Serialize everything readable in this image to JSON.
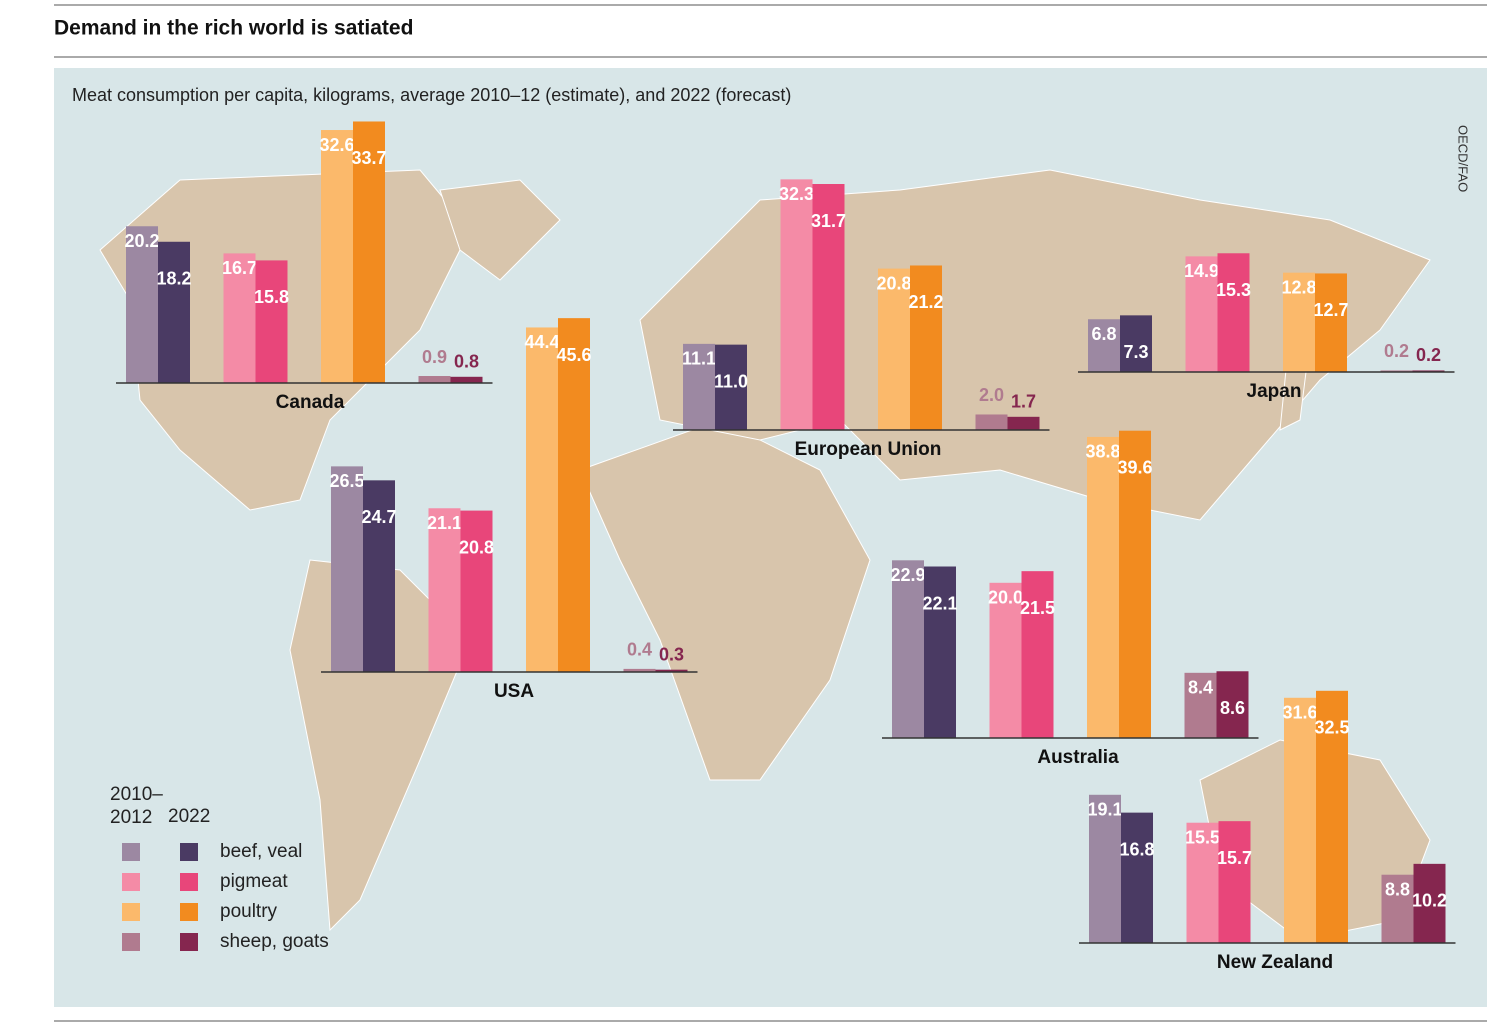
{
  "header": {
    "title": "Demand in the rich world is satiated"
  },
  "chart_data": {
    "type": "bar",
    "subtitle": "Meat consumption per capita, kilograms, average 2010–12 (estimate), and 2022 (forecast)",
    "source": "OECD/FAO",
    "periods": [
      "2010–2012",
      "2022"
    ],
    "categories": [
      "beef, veal",
      "pigmeat",
      "poultry",
      "sheep, goats"
    ],
    "colors": [
      [
        "#9c88a2",
        "#4a3a63"
      ],
      [
        "#f48ba6",
        "#e8467a"
      ],
      [
        "#fbb96b",
        "#f28b1f"
      ],
      [
        "#b07b8f",
        "#85264f"
      ]
    ],
    "regions": [
      {
        "name": "Canada",
        "values": [
          [
            20.2,
            18.2
          ],
          [
            16.7,
            15.8
          ],
          [
            32.6,
            33.7
          ],
          [
            0.9,
            0.8
          ]
        ],
        "value_labels": [
          [
            "20.2",
            "18.2"
          ],
          [
            "16.7",
            "15.8"
          ],
          [
            "32.6",
            "33.7"
          ],
          [
            "0.9",
            "0.8"
          ]
        ]
      },
      {
        "name": "USA",
        "values": [
          [
            26.5,
            24.7
          ],
          [
            21.1,
            20.8
          ],
          [
            44.4,
            45.6
          ],
          [
            0.4,
            0.3
          ]
        ],
        "value_labels": [
          [
            "26.5",
            "24.7"
          ],
          [
            "21.1",
            "20.8"
          ],
          [
            "44.4",
            "45.6"
          ],
          [
            "0.4",
            "0.3"
          ]
        ]
      },
      {
        "name": "European Union",
        "values": [
          [
            11.1,
            11.0
          ],
          [
            32.3,
            31.7
          ],
          [
            20.8,
            21.2
          ],
          [
            2.0,
            1.7
          ]
        ],
        "value_labels": [
          [
            "11.1",
            "11.0"
          ],
          [
            "32.3",
            "31.7"
          ],
          [
            "20.8",
            "21.2"
          ],
          [
            "2.0",
            "1.7"
          ]
        ]
      },
      {
        "name": "Japan",
        "values": [
          [
            6.8,
            7.3
          ],
          [
            14.9,
            15.3
          ],
          [
            12.8,
            12.7
          ],
          [
            0.2,
            0.2
          ]
        ],
        "value_labels": [
          [
            "6.8",
            "7.3"
          ],
          [
            "14.9",
            "15.3"
          ],
          [
            "12.8",
            "12.7"
          ],
          [
            "0.2",
            "0.2"
          ]
        ]
      },
      {
        "name": "Australia",
        "values": [
          [
            22.9,
            22.1
          ],
          [
            20.0,
            21.5
          ],
          [
            38.8,
            39.6
          ],
          [
            8.4,
            8.6
          ]
        ],
        "value_labels": [
          [
            "22.9",
            "22.1"
          ],
          [
            "20.0",
            "21.5"
          ],
          [
            "38.8",
            "39.6"
          ],
          [
            "8.4",
            "8.6"
          ]
        ]
      },
      {
        "name": "New Zealand",
        "values": [
          [
            19.1,
            16.8
          ],
          [
            15.5,
            15.7
          ],
          [
            31.6,
            32.5
          ],
          [
            8.8,
            10.2
          ]
        ],
        "value_labels": [
          [
            "19.1",
            "16.8"
          ],
          [
            "15.5",
            "15.7"
          ],
          [
            "31.6",
            "32.5"
          ],
          [
            "8.8",
            "10.2"
          ]
        ]
      }
    ]
  }
}
